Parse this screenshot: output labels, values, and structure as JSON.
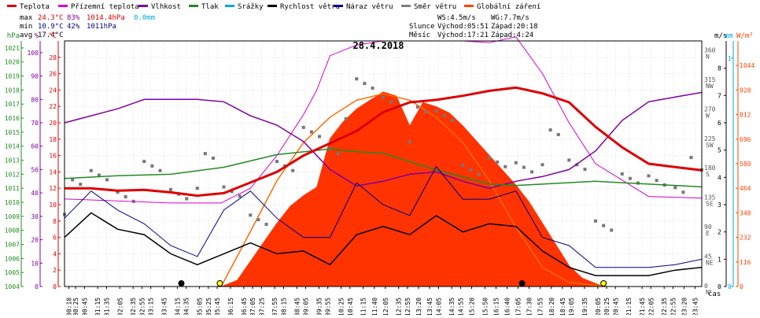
{
  "chart_data": {
    "type": "line",
    "title": "28.4.2018",
    "legend": [
      {
        "label": "Teplota",
        "color": "#dd0000"
      },
      {
        "label": "Přízemní teplota",
        "color": "#d400d4"
      },
      {
        "label": "Vlhkost",
        "color": "#8000a0"
      },
      {
        "label": "Tlak",
        "color": "#228b22"
      },
      {
        "label": "Srážky",
        "color": "#00aadd"
      },
      {
        "label": "Rychlost větru",
        "color": "#000000"
      },
      {
        "label": "Náraz větru",
        "color": "#00008b"
      },
      {
        "label": "Směr větru",
        "color": "#808080"
      },
      {
        "label": "Globální záření",
        "color": "#ff4500"
      }
    ],
    "stats": {
      "max": {
        "label": "max",
        "temp": "24.3°C",
        "hum": "83%",
        "press": "1014.4hPa",
        "rain": "0.0mm"
      },
      "min": {
        "label": "min",
        "temp": "10.9°C",
        "hum": "42%",
        "press": "1011hPa"
      },
      "avg": {
        "label": "avg",
        "temp": "17.4°C"
      }
    },
    "wind_info": {
      "ws": "WS:4.5m/s",
      "wg": "WG:7.7m/s"
    },
    "sun": {
      "label": "Slunce",
      "rise": "Východ:05:51",
      "set": "Západ:20:18"
    },
    "moon": {
      "label": "Měsíc",
      "rise": "Východ:17:21",
      "set": "Západ:4:24"
    },
    "axes": {
      "hpa": {
        "label": "hPa",
        "ticks": [
          "1004",
          "1005",
          "1006",
          "1007",
          "1008",
          "1009",
          "1010",
          "1011",
          "1012",
          "1013",
          "1014",
          "1015",
          "1016",
          "1017",
          "1018",
          "1019",
          "1020",
          "1021"
        ]
      },
      "pct": {
        "label": "%",
        "ticks": [
          "0",
          "10",
          "20",
          "30",
          "40",
          "50",
          "60",
          "70",
          "80",
          "90",
          "100"
        ]
      },
      "temp": {
        "label": "°C",
        "ticks": [
          "0",
          "2",
          "4",
          "6",
          "8",
          "10",
          "12",
          "14",
          "16",
          "18",
          "20",
          "22",
          "24",
          "26",
          "28"
        ]
      },
      "ms": {
        "label": "m/s",
        "ticks": [
          "0",
          "1",
          "2",
          "3",
          "4",
          "5",
          "6",
          "7",
          "8"
        ]
      },
      "mm": {
        "label": "mm",
        "ticks": [
          "0",
          "1"
        ]
      },
      "wm2": {
        "label": "W/m²",
        "ticks": [
          "0",
          "116",
          "232",
          "348",
          "464",
          "580",
          "696",
          "812",
          "928",
          "1044"
        ]
      },
      "dir": {
        "ticks": [
          {
            "deg": "360",
            "dir": "N"
          },
          {
            "deg": "315",
            "dir": "NW"
          },
          {
            "deg": "270",
            "dir": "W"
          },
          {
            "deg": "225",
            "dir": "SW"
          },
          {
            "deg": "180",
            "dir": "S"
          },
          {
            "deg": "135",
            "dir": "SE"
          },
          {
            "deg": "90",
            "dir": "E"
          },
          {
            "deg": "45",
            "dir": "NE"
          },
          {
            "deg": "0",
            "dir": "N"
          }
        ]
      },
      "x": {
        "label": "čas",
        "ticks": [
          "00:10",
          "00:25",
          "00:45",
          "01:15",
          "01:35",
          "02:05",
          "02:35",
          "02:55",
          "03:15",
          "03:45",
          "04:15",
          "04:35",
          "05:05",
          "05:25",
          "05:45",
          "06:15",
          "06:45",
          "07:05",
          "07:25",
          "07:55",
          "08:15",
          "08:45",
          "09:05",
          "09:35",
          "09:55",
          "10:25",
          "10:45",
          "11:15",
          "11:40",
          "12:05",
          "12:35",
          "12:55",
          "13:20",
          "13:45",
          "14:05",
          "14:35",
          "14:55",
          "15:20",
          "15:50",
          "16:15",
          "16:40",
          "17:05",
          "17:30",
          "17:55",
          "18:20",
          "18:45",
          "19:05",
          "19:35",
          "20:05",
          "20:25",
          "20:45",
          "21:15",
          "21:45",
          "22:05",
          "22:35",
          "22:55",
          "23:20",
          "23:45"
        ]
      }
    },
    "temperature_c": [
      [
        0,
        12
      ],
      [
        1,
        12
      ],
      [
        2,
        11.7
      ],
      [
        3,
        11.8
      ],
      [
        4,
        11.5
      ],
      [
        5,
        11.1
      ],
      [
        6,
        11.4
      ],
      [
        7,
        12.7
      ],
      [
        8,
        14
      ],
      [
        9,
        16
      ],
      [
        10,
        17.5
      ],
      [
        11,
        19
      ],
      [
        12,
        21.3
      ],
      [
        13,
        22.5
      ],
      [
        14,
        22.8
      ],
      [
        15,
        23.3
      ],
      [
        16,
        23.9
      ],
      [
        17,
        24.3
      ],
      [
        18,
        23.6
      ],
      [
        19,
        22.5
      ],
      [
        20,
        19.5
      ],
      [
        21,
        17
      ],
      [
        22,
        15
      ],
      [
        23,
        14.6
      ],
      [
        24,
        14.2
      ]
    ],
    "ground_temp_c": [
      [
        0,
        10.7
      ],
      [
        4,
        10.2
      ],
      [
        5.9,
        10.2
      ],
      [
        7,
        12
      ],
      [
        8,
        16
      ],
      [
        9,
        21
      ],
      [
        9.5,
        24
      ],
      [
        10,
        28.2
      ],
      [
        11,
        29.5
      ],
      [
        12,
        30
      ],
      [
        13,
        30
      ],
      [
        14,
        30
      ],
      [
        15,
        30
      ],
      [
        16,
        29.8
      ],
      [
        17,
        30.5
      ],
      [
        18,
        26
      ],
      [
        19,
        20
      ],
      [
        20,
        15
      ],
      [
        21,
        13
      ],
      [
        22,
        11
      ],
      [
        23,
        10.9
      ],
      [
        24,
        10.8
      ]
    ],
    "humidity_pct": [
      [
        0,
        70
      ],
      [
        1,
        73
      ],
      [
        2,
        76
      ],
      [
        3,
        80
      ],
      [
        4,
        80
      ],
      [
        5,
        80
      ],
      [
        6,
        79
      ],
      [
        7,
        73
      ],
      [
        8,
        69
      ],
      [
        9,
        62
      ],
      [
        10,
        50
      ],
      [
        11,
        43
      ],
      [
        12,
        45
      ],
      [
        13,
        48
      ],
      [
        14,
        49
      ],
      [
        15,
        45
      ],
      [
        16,
        42
      ],
      [
        17,
        45
      ],
      [
        18,
        47
      ],
      [
        19,
        50
      ],
      [
        20,
        58
      ],
      [
        21,
        71
      ],
      [
        22,
        79
      ],
      [
        23,
        81
      ],
      [
        24,
        83
      ]
    ],
    "pressure_hpa": [
      [
        0,
        1011.7
      ],
      [
        2,
        1011.9
      ],
      [
        4,
        1012.0
      ],
      [
        6,
        1012.5
      ],
      [
        8,
        1013.4
      ],
      [
        10,
        1013.8
      ],
      [
        11,
        1013.6
      ],
      [
        12,
        1013.5
      ],
      [
        14,
        1012.3
      ],
      [
        15,
        1011.8
      ],
      [
        16,
        1011.3
      ],
      [
        17,
        1011.2
      ],
      [
        18,
        1011.3
      ],
      [
        20,
        1011.5
      ],
      [
        22,
        1011.3
      ],
      [
        23,
        1011.2
      ],
      [
        24,
        1011.1
      ]
    ],
    "wind_speed_ms": [
      [
        0,
        1.8
      ],
      [
        1,
        2.7
      ],
      [
        2,
        2.1
      ],
      [
        3,
        1.9
      ],
      [
        4,
        1.2
      ],
      [
        5,
        0.8
      ],
      [
        6,
        1.2
      ],
      [
        7,
        1.6
      ],
      [
        8,
        1.2
      ],
      [
        9,
        1.3
      ],
      [
        10,
        0.8
      ],
      [
        11,
        1.9
      ],
      [
        12,
        2.2
      ],
      [
        13,
        1.9
      ],
      [
        14,
        2.6
      ],
      [
        15,
        2.0
      ],
      [
        16,
        2.3
      ],
      [
        17,
        2.2
      ],
      [
        18,
        1.3
      ],
      [
        19,
        0.7
      ],
      [
        20,
        0.4
      ],
      [
        21,
        0.4
      ],
      [
        22,
        0.4
      ],
      [
        23,
        0.6
      ],
      [
        24,
        0.7
      ]
    ],
    "wind_gust_ms": [
      [
        0,
        2.5
      ],
      [
        1,
        3.5
      ],
      [
        2,
        2.8
      ],
      [
        3,
        2.3
      ],
      [
        4,
        1.5
      ],
      [
        5,
        1.1
      ],
      [
        6,
        2.8
      ],
      [
        7,
        3.5
      ],
      [
        8,
        2.5
      ],
      [
        9,
        1.8
      ],
      [
        10,
        1.8
      ],
      [
        11,
        3.8
      ],
      [
        12,
        3.0
      ],
      [
        13,
        2.6
      ],
      [
        14,
        4.4
      ],
      [
        15,
        3.2
      ],
      [
        16,
        3.2
      ],
      [
        17,
        3.5
      ],
      [
        18,
        1.8
      ],
      [
        19,
        1.5
      ],
      [
        20,
        0.7
      ],
      [
        21,
        0.7
      ],
      [
        22,
        0.7
      ],
      [
        23,
        0.8
      ],
      [
        24,
        1.0
      ]
    ],
    "wind_dir_deg": [
      [
        0,
        140
      ],
      [
        1,
        170
      ],
      [
        2,
        160
      ],
      [
        3,
        170
      ],
      [
        4,
        150
      ],
      [
        5,
        175
      ],
      [
        6,
        140
      ],
      [
        7,
        120
      ],
      [
        8,
        165
      ],
      [
        9,
        240
      ],
      [
        10,
        230
      ],
      [
        11,
        300
      ],
      [
        12,
        295
      ],
      [
        13,
        250
      ],
      [
        14,
        260
      ],
      [
        15,
        200
      ],
      [
        16,
        175
      ],
      [
        17,
        190
      ],
      [
        18,
        210
      ],
      [
        19,
        180
      ],
      [
        20,
        110
      ],
      [
        21,
        145
      ],
      [
        22,
        165
      ],
      [
        23,
        170
      ],
      [
        24,
        160
      ]
    ],
    "global_radiation_wm2": [
      [
        5.9,
        0
      ],
      [
        6.5,
        30
      ],
      [
        7,
        120
      ],
      [
        7.5,
        210
      ],
      [
        8,
        300
      ],
      [
        8.5,
        380
      ],
      [
        9,
        430
      ],
      [
        9.5,
        470
      ],
      [
        10,
        700
      ],
      [
        10.5,
        780
      ],
      [
        11,
        840
      ],
      [
        11.5,
        880
      ],
      [
        12,
        920
      ],
      [
        12.5,
        900
      ],
      [
        13,
        760
      ],
      [
        13.5,
        870
      ],
      [
        14,
        850
      ],
      [
        14.5,
        820
      ],
      [
        15,
        760
      ],
      [
        15.5,
        690
      ],
      [
        16,
        620
      ],
      [
        16.5,
        550
      ],
      [
        17,
        480
      ],
      [
        17.5,
        400
      ],
      [
        18,
        300
      ],
      [
        18.5,
        200
      ],
      [
        19,
        100
      ],
      [
        19.5,
        40
      ],
      [
        20.3,
        0
      ]
    ],
    "clear_sky_radiation_wm2": [
      [
        5.9,
        0
      ],
      [
        7,
        260
      ],
      [
        8,
        500
      ],
      [
        9,
        680
      ],
      [
        10,
        800
      ],
      [
        11,
        880
      ],
      [
        12,
        910
      ],
      [
        13,
        880
      ],
      [
        14,
        800
      ],
      [
        15,
        680
      ],
      [
        16,
        500
      ],
      [
        17,
        280
      ],
      [
        18,
        90
      ],
      [
        19,
        20
      ],
      [
        20.3,
        0
      ]
    ],
    "markers": {
      "sunrise": "05:51",
      "sunset": "20:18",
      "moonrise": "17:21",
      "moonset": "4:24"
    }
  }
}
